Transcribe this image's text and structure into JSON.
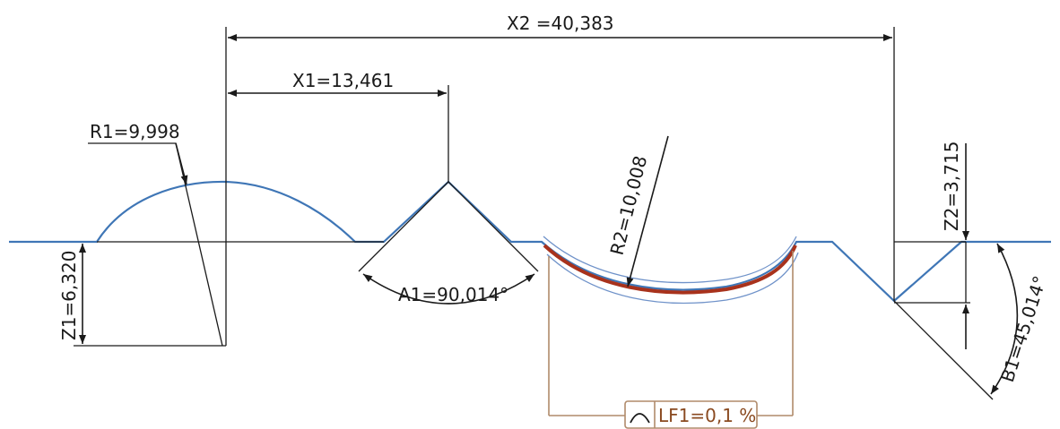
{
  "dimensions": {
    "x2": "X2 =40,383",
    "x1": "X1=13,461",
    "r1": "R1=9,998",
    "r2": "R2=10,008",
    "z1": "Z1=6,320",
    "z2": "Z2=3,715",
    "a1": "A1=90,014°",
    "b1": "B1=45,014°",
    "lf1": "LF1=0,1 %"
  },
  "colors": {
    "profile": "#3f76b6",
    "fit_arc": "#a8321c",
    "tolerance_band": "#6f92c9",
    "lf_frame": "#b08a6a",
    "dimension_lines": "#1a1a1a"
  },
  "icons": {
    "lf_symbol": "arc-form-icon"
  }
}
